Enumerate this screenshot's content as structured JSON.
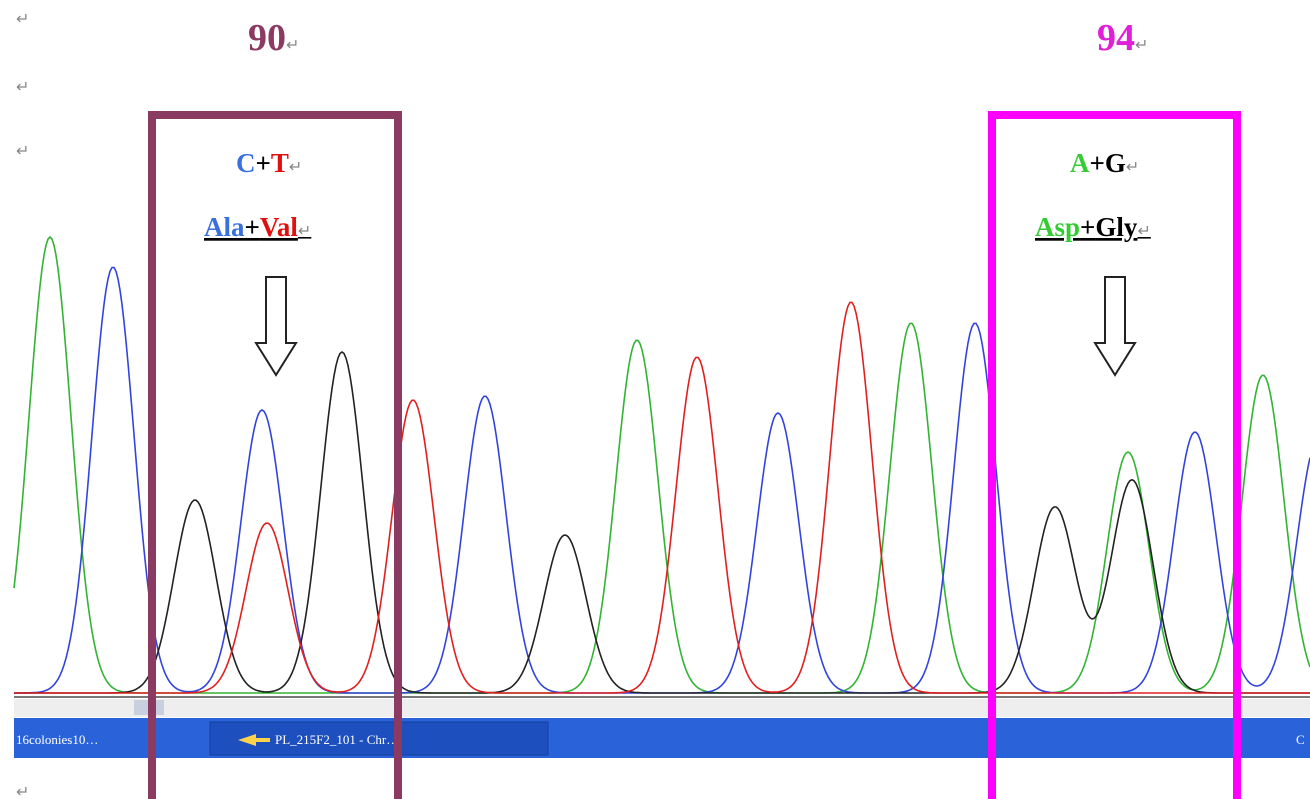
{
  "labels": {
    "left_position": "90",
    "right_position": "94"
  },
  "left_box": {
    "bases": [
      "C",
      "+",
      "T"
    ],
    "amino_acids": [
      "Ala",
      "+",
      "Val"
    ]
  },
  "right_box": {
    "bases": [
      "A",
      "+",
      "G"
    ],
    "amino_acids": [
      "Asp",
      "+",
      "Gly"
    ]
  },
  "taskbar": {
    "items": [
      "16colonies10…",
      "PL_215F2_101 - Chr…",
      "C"
    ]
  },
  "paragraph_mark": "↵"
}
